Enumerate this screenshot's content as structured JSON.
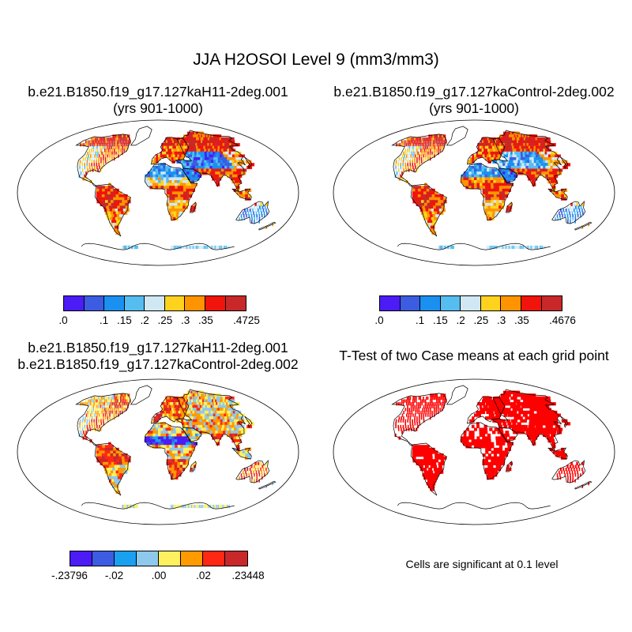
{
  "title": "JJA H2OSOI Level 9 (mm3/mm3)",
  "panels": [
    {
      "title_line1": "b.e21.B1850.f19_g17.127kaH11-2deg.001",
      "title_line2": "(yrs 901-1000)"
    },
    {
      "title_line1": "b.e21.B1850.f19_g17.127kaControl-2deg.002",
      "title_line2": "(yrs 901-1000)"
    },
    {
      "title_line1": "b.e21.B1850.f19_g17.127kaH11-2deg.001",
      "title_line2": "b.e21.B1850.f19_g17.127kaControl-2deg.002"
    },
    {
      "title_line1": "T-Test of two Case means at each grid point",
      "title_line2": ""
    }
  ],
  "legends": [
    {
      "colors": [
        "#4b1cf5",
        "#3c5ce2",
        "#1a90f0",
        "#56bdf0",
        "#cfe8f4",
        "#ffd21e",
        "#ff9400",
        "#f0140c",
        "#c8282a"
      ],
      "ticks": [
        ".0",
        "",
        ".1",
        ".15",
        ".2",
        ".25",
        ".3",
        ".35",
        "",
        ".4725"
      ]
    },
    {
      "colors": [
        "#4b1cf5",
        "#3c5ce2",
        "#1a90f0",
        "#56bdf0",
        "#cfe8f4",
        "#ffd21e",
        "#ff9400",
        "#f0140c",
        "#c8282a"
      ],
      "ticks": [
        ".0",
        "",
        ".1",
        ".15",
        ".2",
        ".25",
        ".3",
        ".35",
        "",
        ".4676"
      ]
    },
    {
      "colors": [
        "#4b1cf5",
        "#3c5ce2",
        "#1aa0f0",
        "#8ec8ec",
        "#fff060",
        "#ff9a00",
        "#ff2814",
        "#c8282a"
      ],
      "ticks": [
        "-.23796",
        "",
        "-.02",
        "",
        ".00",
        "",
        ".02",
        "",
        ".23448"
      ]
    }
  ],
  "significance_note": "Cells are significant at 0.1 level",
  "colors": {
    "land_default": "#f5a21e",
    "significance": "#ff0000",
    "coast": "#000000"
  },
  "chart_data": [
    {
      "type": "heatmap",
      "projection": "Robinson",
      "field": "H2OSOI level 9, JJA",
      "units": "mm3/mm3",
      "case": "b.e21.B1850.f19_g17.127kaH11-2deg.001",
      "years": "901-1000",
      "range": [
        0,
        0.4725
      ],
      "region_values": [
        {
          "region": "Arctic North America / Siberia",
          "value": 0.4
        },
        {
          "region": "Eastern North America",
          "value": 0.3
        },
        {
          "region": "Western North America",
          "value": 0.22
        },
        {
          "region": "Amazon",
          "value": 0.38
        },
        {
          "region": "Southern South America",
          "value": 0.28
        },
        {
          "region": "Europe",
          "value": 0.3
        },
        {
          "region": "Sahara / Arabia",
          "value": 0.12
        },
        {
          "region": "Central Asia",
          "value": 0.1
        },
        {
          "region": "Sahel",
          "value": 0.25
        },
        {
          "region": "Central Africa",
          "value": 0.38
        },
        {
          "region": "Southern Africa",
          "value": 0.28
        },
        {
          "region": "South / Southeast Asia",
          "value": 0.36
        },
        {
          "region": "Australia",
          "value": 0.15
        },
        {
          "region": "Antarctic coast",
          "value": 0.18
        }
      ]
    },
    {
      "type": "heatmap",
      "projection": "Robinson",
      "field": "H2OSOI level 9, JJA",
      "units": "mm3/mm3",
      "case": "b.e21.B1850.f19_g17.127kaControl-2deg.002",
      "years": "901-1000",
      "range": [
        0,
        0.4676
      ],
      "region_values": [
        {
          "region": "Arctic North America / Siberia",
          "value": 0.4
        },
        {
          "region": "Eastern North America",
          "value": 0.3
        },
        {
          "region": "Western North America",
          "value": 0.24
        },
        {
          "region": "Amazon",
          "value": 0.36
        },
        {
          "region": "Southern South America",
          "value": 0.28
        },
        {
          "region": "Europe",
          "value": 0.3
        },
        {
          "region": "Sahara / Arabia",
          "value": 0.12
        },
        {
          "region": "Central Asia",
          "value": 0.18
        },
        {
          "region": "Sahel",
          "value": 0.36
        },
        {
          "region": "Central Africa",
          "value": 0.38
        },
        {
          "region": "Southern Africa",
          "value": 0.28
        },
        {
          "region": "South / Southeast Asia",
          "value": 0.36
        },
        {
          "region": "Australia",
          "value": 0.15
        },
        {
          "region": "Antarctic coast",
          "value": 0.18
        }
      ]
    },
    {
      "type": "heatmap",
      "projection": "Robinson",
      "field": "H2OSOI level 9 difference (H11 - Control)",
      "units": "mm3/mm3",
      "range": [
        -0.23796,
        0.23448
      ],
      "region_values": [
        {
          "region": "Arctic North America / Siberia",
          "value": 0.01
        },
        {
          "region": "Eastern North America",
          "value": 0.02
        },
        {
          "region": "Western North America",
          "value": 0.0
        },
        {
          "region": "Amazon",
          "value": 0.03
        },
        {
          "region": "Southern South America",
          "value": 0.01
        },
        {
          "region": "Europe",
          "value": 0.01
        },
        {
          "region": "Sahara / Arabia",
          "value": 0.0
        },
        {
          "region": "Central Asia",
          "value": 0.0
        },
        {
          "region": "Sahel",
          "value": -0.1
        },
        {
          "region": "Central Africa",
          "value": 0.02
        },
        {
          "region": "Southern Africa",
          "value": 0.02
        },
        {
          "region": "South / Southeast Asia",
          "value": 0.03
        },
        {
          "region": "Australia",
          "value": 0.04
        },
        {
          "region": "Antarctic coast",
          "value": 0.0
        }
      ]
    },
    {
      "type": "heatmap",
      "projection": "Robinson",
      "field": "T-test significance",
      "significance_level": 0.1,
      "region_values": [
        {
          "region": "North America",
          "significant": true
        },
        {
          "region": "South America",
          "significant": true
        },
        {
          "region": "Europe",
          "significant": true
        },
        {
          "region": "Africa",
          "significant": true
        },
        {
          "region": "Asia",
          "significant": true
        },
        {
          "region": "Australia",
          "significant": true
        },
        {
          "region": "Antarctic coast",
          "significant": false
        }
      ]
    }
  ]
}
